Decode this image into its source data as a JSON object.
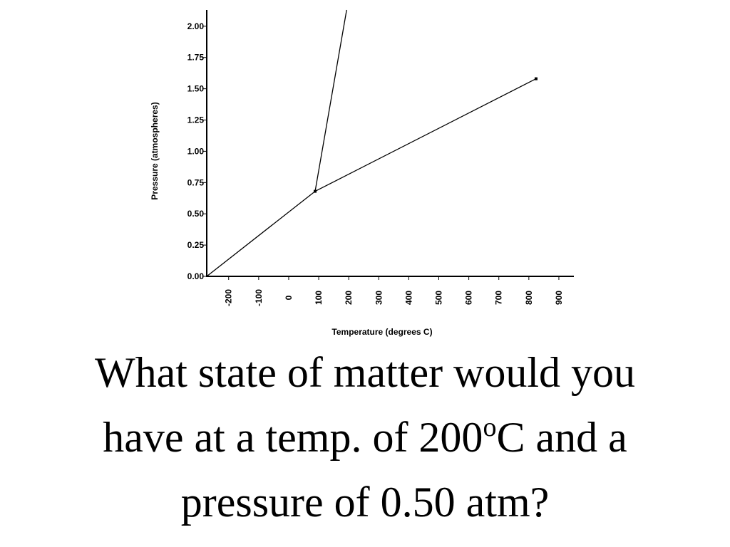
{
  "chart_data": {
    "type": "line",
    "x_label": "Temperature (degrees C)",
    "y_label": "Pressure (atmospheres)",
    "series": [
      {
        "color": "#000000",
        "x": [
          -273,
          88
        ],
        "values": [
          0,
          0.68
        ]
      },
      {
        "color": "#000000",
        "x": [
          88,
          824
        ],
        "values": [
          0.68,
          1.58
        ],
        "markers": true
      },
      {
        "color": "#000000",
        "x": [
          88,
          193
        ],
        "values": [
          0.68,
          2.13
        ]
      }
    ],
    "xlim": [
      -273,
      950
    ],
    "ylim": [
      0,
      2.13
    ],
    "xticks": [
      -200,
      -100,
      0,
      100,
      200,
      300,
      400,
      500,
      600,
      700,
      800,
      900
    ],
    "yticks": [
      {
        "value": 0,
        "label": "0.00"
      },
      {
        "value": 0.25,
        "label": "0.25"
      },
      {
        "value": 0.5,
        "label": "0.50"
      },
      {
        "value": 0.75,
        "label": "0.75"
      },
      {
        "value": 1,
        "label": "1.00"
      },
      {
        "value": 1.25,
        "label": "1.25"
      },
      {
        "value": 1.5,
        "label": "1.50"
      },
      {
        "value": 1.75,
        "label": "1.75"
      },
      {
        "value": 2,
        "label": "2.00"
      }
    ],
    "grid": false
  },
  "question": {
    "parts": [
      "What state of matter would you",
      "have at a temp. of 200",
      "o",
      "C and a",
      "pressure of 0.50 atm?"
    ]
  }
}
